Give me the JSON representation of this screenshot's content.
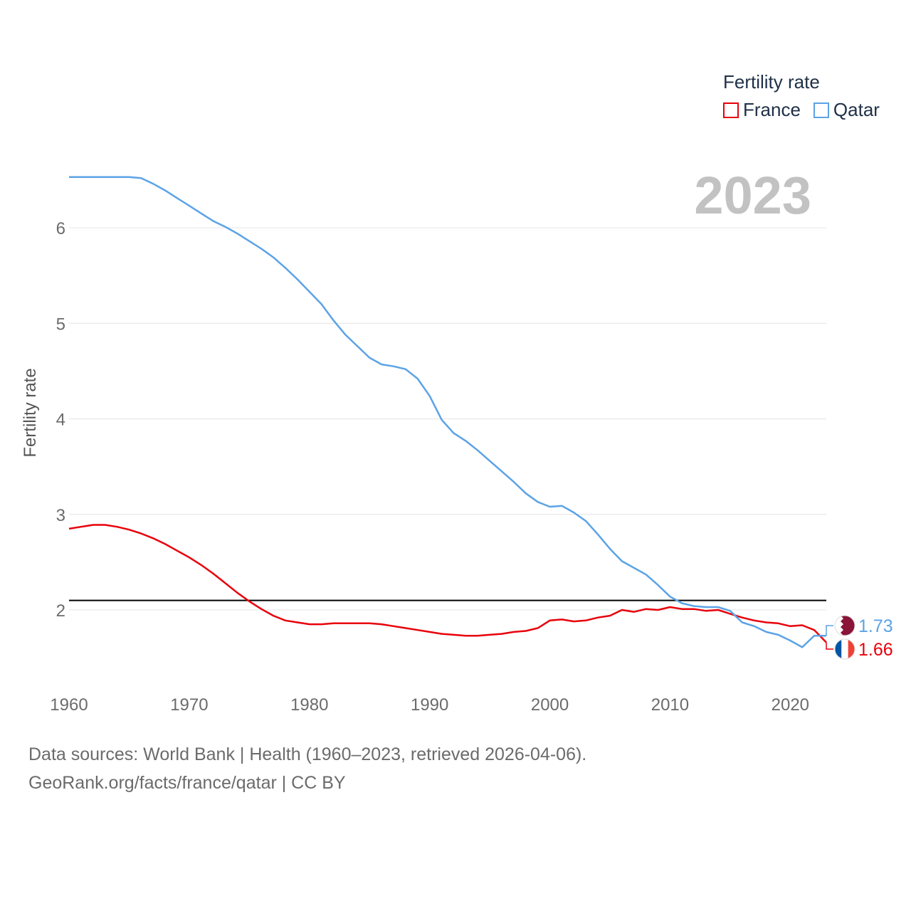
{
  "legend": {
    "title": "Fertility rate",
    "items": [
      {
        "name": "France",
        "color": "#e8000b"
      },
      {
        "name": "Qatar",
        "color": "#5ba3e6"
      }
    ]
  },
  "footer": {
    "line1": "Data sources: World Bank | Health (1960–2023, retrieved 2026-04-06).",
    "line2": "GeoRank.org/facts/france/qatar | CC BY"
  },
  "chart_data": {
    "type": "line",
    "title": "Fertility rate",
    "year_label": "2023",
    "ylabel": "Fertility rate",
    "xlabel": "",
    "xlim": [
      1960,
      2023
    ],
    "ylim": [
      1.3,
      6.8
    ],
    "xticks": [
      1960,
      1970,
      1980,
      1990,
      2000,
      2010,
      2020
    ],
    "yticks": [
      2,
      3,
      4,
      5,
      6
    ],
    "reference_line": {
      "value": 2.1,
      "color": "#000000"
    },
    "x": [
      1960,
      1961,
      1962,
      1963,
      1964,
      1965,
      1966,
      1967,
      1968,
      1969,
      1970,
      1971,
      1972,
      1973,
      1974,
      1975,
      1976,
      1977,
      1978,
      1979,
      1980,
      1981,
      1982,
      1983,
      1984,
      1985,
      1986,
      1987,
      1988,
      1989,
      1990,
      1991,
      1992,
      1993,
      1994,
      1995,
      1996,
      1997,
      1998,
      1999,
      2000,
      2001,
      2002,
      2003,
      2004,
      2005,
      2006,
      2007,
      2008,
      2009,
      2010,
      2011,
      2012,
      2013,
      2014,
      2015,
      2016,
      2017,
      2018,
      2019,
      2020,
      2021,
      2022,
      2023
    ],
    "series": [
      {
        "name": "France",
        "color": "#e8000b",
        "end_label": "1.66",
        "values": [
          2.85,
          2.87,
          2.89,
          2.89,
          2.87,
          2.84,
          2.8,
          2.75,
          2.69,
          2.62,
          2.55,
          2.47,
          2.38,
          2.28,
          2.18,
          2.09,
          2.01,
          1.94,
          1.89,
          1.87,
          1.85,
          1.85,
          1.86,
          1.86,
          1.86,
          1.86,
          1.85,
          1.83,
          1.81,
          1.79,
          1.77,
          1.75,
          1.74,
          1.73,
          1.73,
          1.74,
          1.75,
          1.77,
          1.78,
          1.81,
          1.89,
          1.9,
          1.88,
          1.89,
          1.92,
          1.94,
          2.0,
          1.98,
          2.01,
          2.0,
          2.03,
          2.01,
          2.01,
          1.99,
          2.0,
          1.96,
          1.92,
          1.89,
          1.87,
          1.86,
          1.83,
          1.84,
          1.79,
          1.66
        ]
      },
      {
        "name": "Qatar",
        "color": "#5ba3e6",
        "end_label": "1.73",
        "values": [
          6.53,
          6.53,
          6.53,
          6.53,
          6.53,
          6.53,
          6.52,
          6.46,
          6.39,
          6.31,
          6.23,
          6.15,
          6.07,
          6.01,
          5.94,
          5.86,
          5.78,
          5.69,
          5.58,
          5.46,
          5.33,
          5.2,
          5.03,
          4.88,
          4.76,
          4.64,
          4.57,
          4.55,
          4.52,
          4.42,
          4.24,
          3.99,
          3.85,
          3.77,
          3.67,
          3.56,
          3.45,
          3.34,
          3.22,
          3.13,
          3.08,
          3.09,
          3.02,
          2.93,
          2.79,
          2.64,
          2.51,
          2.44,
          2.37,
          2.26,
          2.14,
          2.07,
          2.04,
          2.03,
          2.03,
          1.99,
          1.87,
          1.83,
          1.77,
          1.74,
          1.68,
          1.61,
          1.73,
          1.73
        ]
      }
    ]
  }
}
